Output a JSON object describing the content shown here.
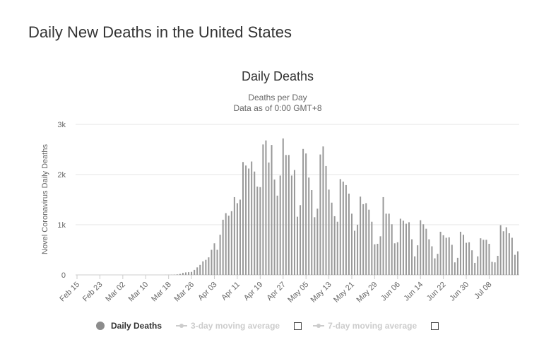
{
  "page": {
    "title": "Daily New Deaths in the United States"
  },
  "colors": {
    "bar": "#999999",
    "grid": "#e6e6e6",
    "axis_text": "#666666",
    "legend_inactive": "#cccccc"
  },
  "legend": {
    "items": [
      {
        "label": "Daily Deaths",
        "active": true,
        "symbol": "circle-icon"
      },
      {
        "label": "3-day moving average",
        "active": false,
        "symbol": "line-marker-icon"
      },
      {
        "label": "7-day moving average",
        "active": false,
        "symbol": "line-marker-icon"
      }
    ]
  },
  "chart_data": {
    "type": "bar",
    "title": "Daily Deaths",
    "subtitle_lines": [
      "Deaths per Day",
      "Data as of 0:00 GMT+8"
    ],
    "xlabel": "",
    "ylabel": "Novel Coronavirus Daily Deaths",
    "ylim": [
      0,
      3000
    ],
    "y_ticks": [
      0,
      1000,
      2000,
      3000
    ],
    "y_tick_labels": [
      "0",
      "1k",
      "2k",
      "3k"
    ],
    "grid": true,
    "legend_position": "bottom-left",
    "x_tick_labels": [
      "Feb 15",
      "Feb 23",
      "Mar 02",
      "Mar 10",
      "Mar 18",
      "Mar 26",
      "Apr 03",
      "Apr 11",
      "Apr 19",
      "Apr 27",
      "May 05",
      "May 13",
      "May 21",
      "May 29",
      "Jun 06",
      "Jun 14",
      "Jun 22",
      "Jun 30",
      "Jul 08"
    ],
    "x_tick_every": 8,
    "categories_start": "Feb 15",
    "series": [
      {
        "name": "Daily Deaths",
        "values": [
          0,
          0,
          0,
          0,
          0,
          0,
          0,
          0,
          0,
          0,
          0,
          0,
          0,
          0,
          0,
          0,
          0,
          0,
          0,
          0,
          0,
          0,
          0,
          0,
          0,
          0,
          0,
          0,
          0,
          0,
          0,
          1,
          2,
          3,
          5,
          10,
          20,
          40,
          50,
          55,
          60,
          100,
          150,
          200,
          270,
          300,
          350,
          500,
          630,
          500,
          800,
          1100,
          1230,
          1180,
          1270,
          1550,
          1430,
          1500,
          2250,
          2180,
          2120,
          2260,
          2060,
          1760,
          1750,
          2600,
          2680,
          2240,
          2590,
          1900,
          1580,
          1980,
          2720,
          2390,
          2390,
          1980,
          2090,
          1160,
          1390,
          2510,
          2420,
          1940,
          1690,
          1150,
          1320,
          2400,
          2560,
          2170,
          1700,
          1440,
          1170,
          1060,
          1910,
          1860,
          1790,
          1620,
          1220,
          880,
          1000,
          1560,
          1410,
          1430,
          1300,
          1060,
          610,
          620,
          770,
          1550,
          1220,
          1220,
          1010,
          630,
          650,
          1120,
          1080,
          1020,
          1050,
          710,
          370,
          590,
          1090,
          1010,
          920,
          710,
          570,
          330,
          420,
          860,
          790,
          740,
          750,
          600,
          250,
          340,
          860,
          800,
          640,
          650,
          490,
          240,
          370,
          730,
          700,
          700,
          620,
          260,
          250,
          380,
          990,
          870,
          950,
          830,
          740,
          400,
          470
        ]
      }
    ]
  }
}
